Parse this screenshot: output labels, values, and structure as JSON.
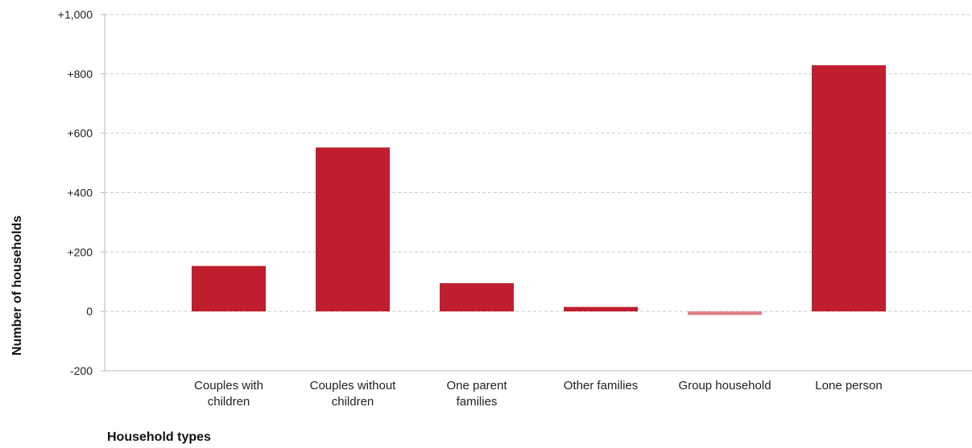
{
  "chart_data": {
    "type": "bar",
    "title": "",
    "xlabel": "Household types",
    "ylabel": "Number of households",
    "categories": [
      [
        "Couples with",
        "children"
      ],
      [
        "Couples without",
        "children"
      ],
      [
        "One parent",
        "families"
      ],
      [
        "Other families"
      ],
      [
        "Group household"
      ],
      [
        "Lone person"
      ]
    ],
    "values": [
      153,
      552,
      95,
      15,
      -12,
      829
    ],
    "ylim": [
      -200,
      1000
    ],
    "yticks": [
      -200,
      0,
      200,
      400,
      600,
      800,
      1000
    ],
    "ytick_labels": [
      "-200",
      "0",
      "+200",
      "+400",
      "+600",
      "+800",
      "+1,000"
    ],
    "grid": true,
    "legend": false,
    "colors": {
      "positive": "#be1e2d",
      "negative": "#e07f88",
      "grid": "#cccccc",
      "axis": "#bbbbbb"
    }
  }
}
